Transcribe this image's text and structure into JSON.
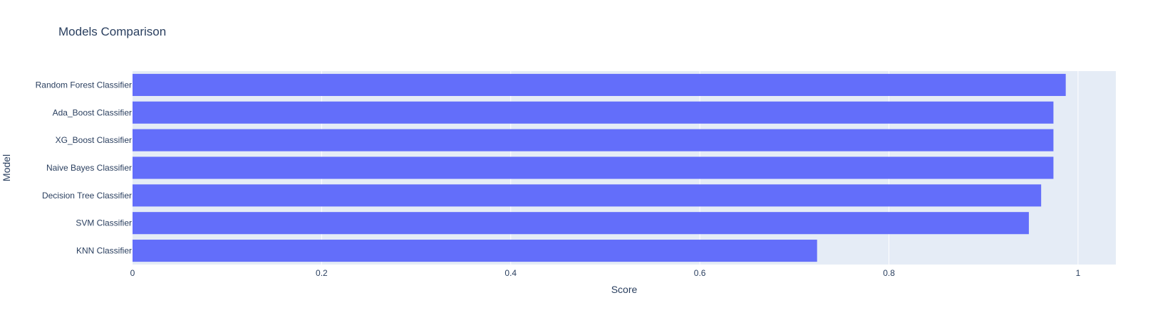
{
  "chart_data": {
    "type": "bar",
    "orientation": "horizontal",
    "title": "Models Comparison",
    "xlabel": "Score",
    "ylabel": "Model",
    "categories": [
      "Random Forest Classifier",
      "Ada_Boost Classifier",
      "XG_Boost Classifier",
      "Naive Bayes Classifier",
      "Decision Tree Classifier",
      "SVM Classifier",
      "KNN Classifier"
    ],
    "values": [
      0.987,
      0.974,
      0.974,
      0.974,
      0.961,
      0.948,
      0.724
    ],
    "xlim": [
      0,
      1.04
    ],
    "xticks": [
      0,
      0.2,
      0.4,
      0.6,
      0.8,
      1
    ],
    "xtick_labels": [
      "0",
      "0.2",
      "0.4",
      "0.6",
      "0.8",
      "1"
    ],
    "grid": true,
    "colors": {
      "bar": "#636efa",
      "plot_bg": "#e5ecf6",
      "grid": "#ffffff",
      "text": "#2a3f5f"
    }
  }
}
